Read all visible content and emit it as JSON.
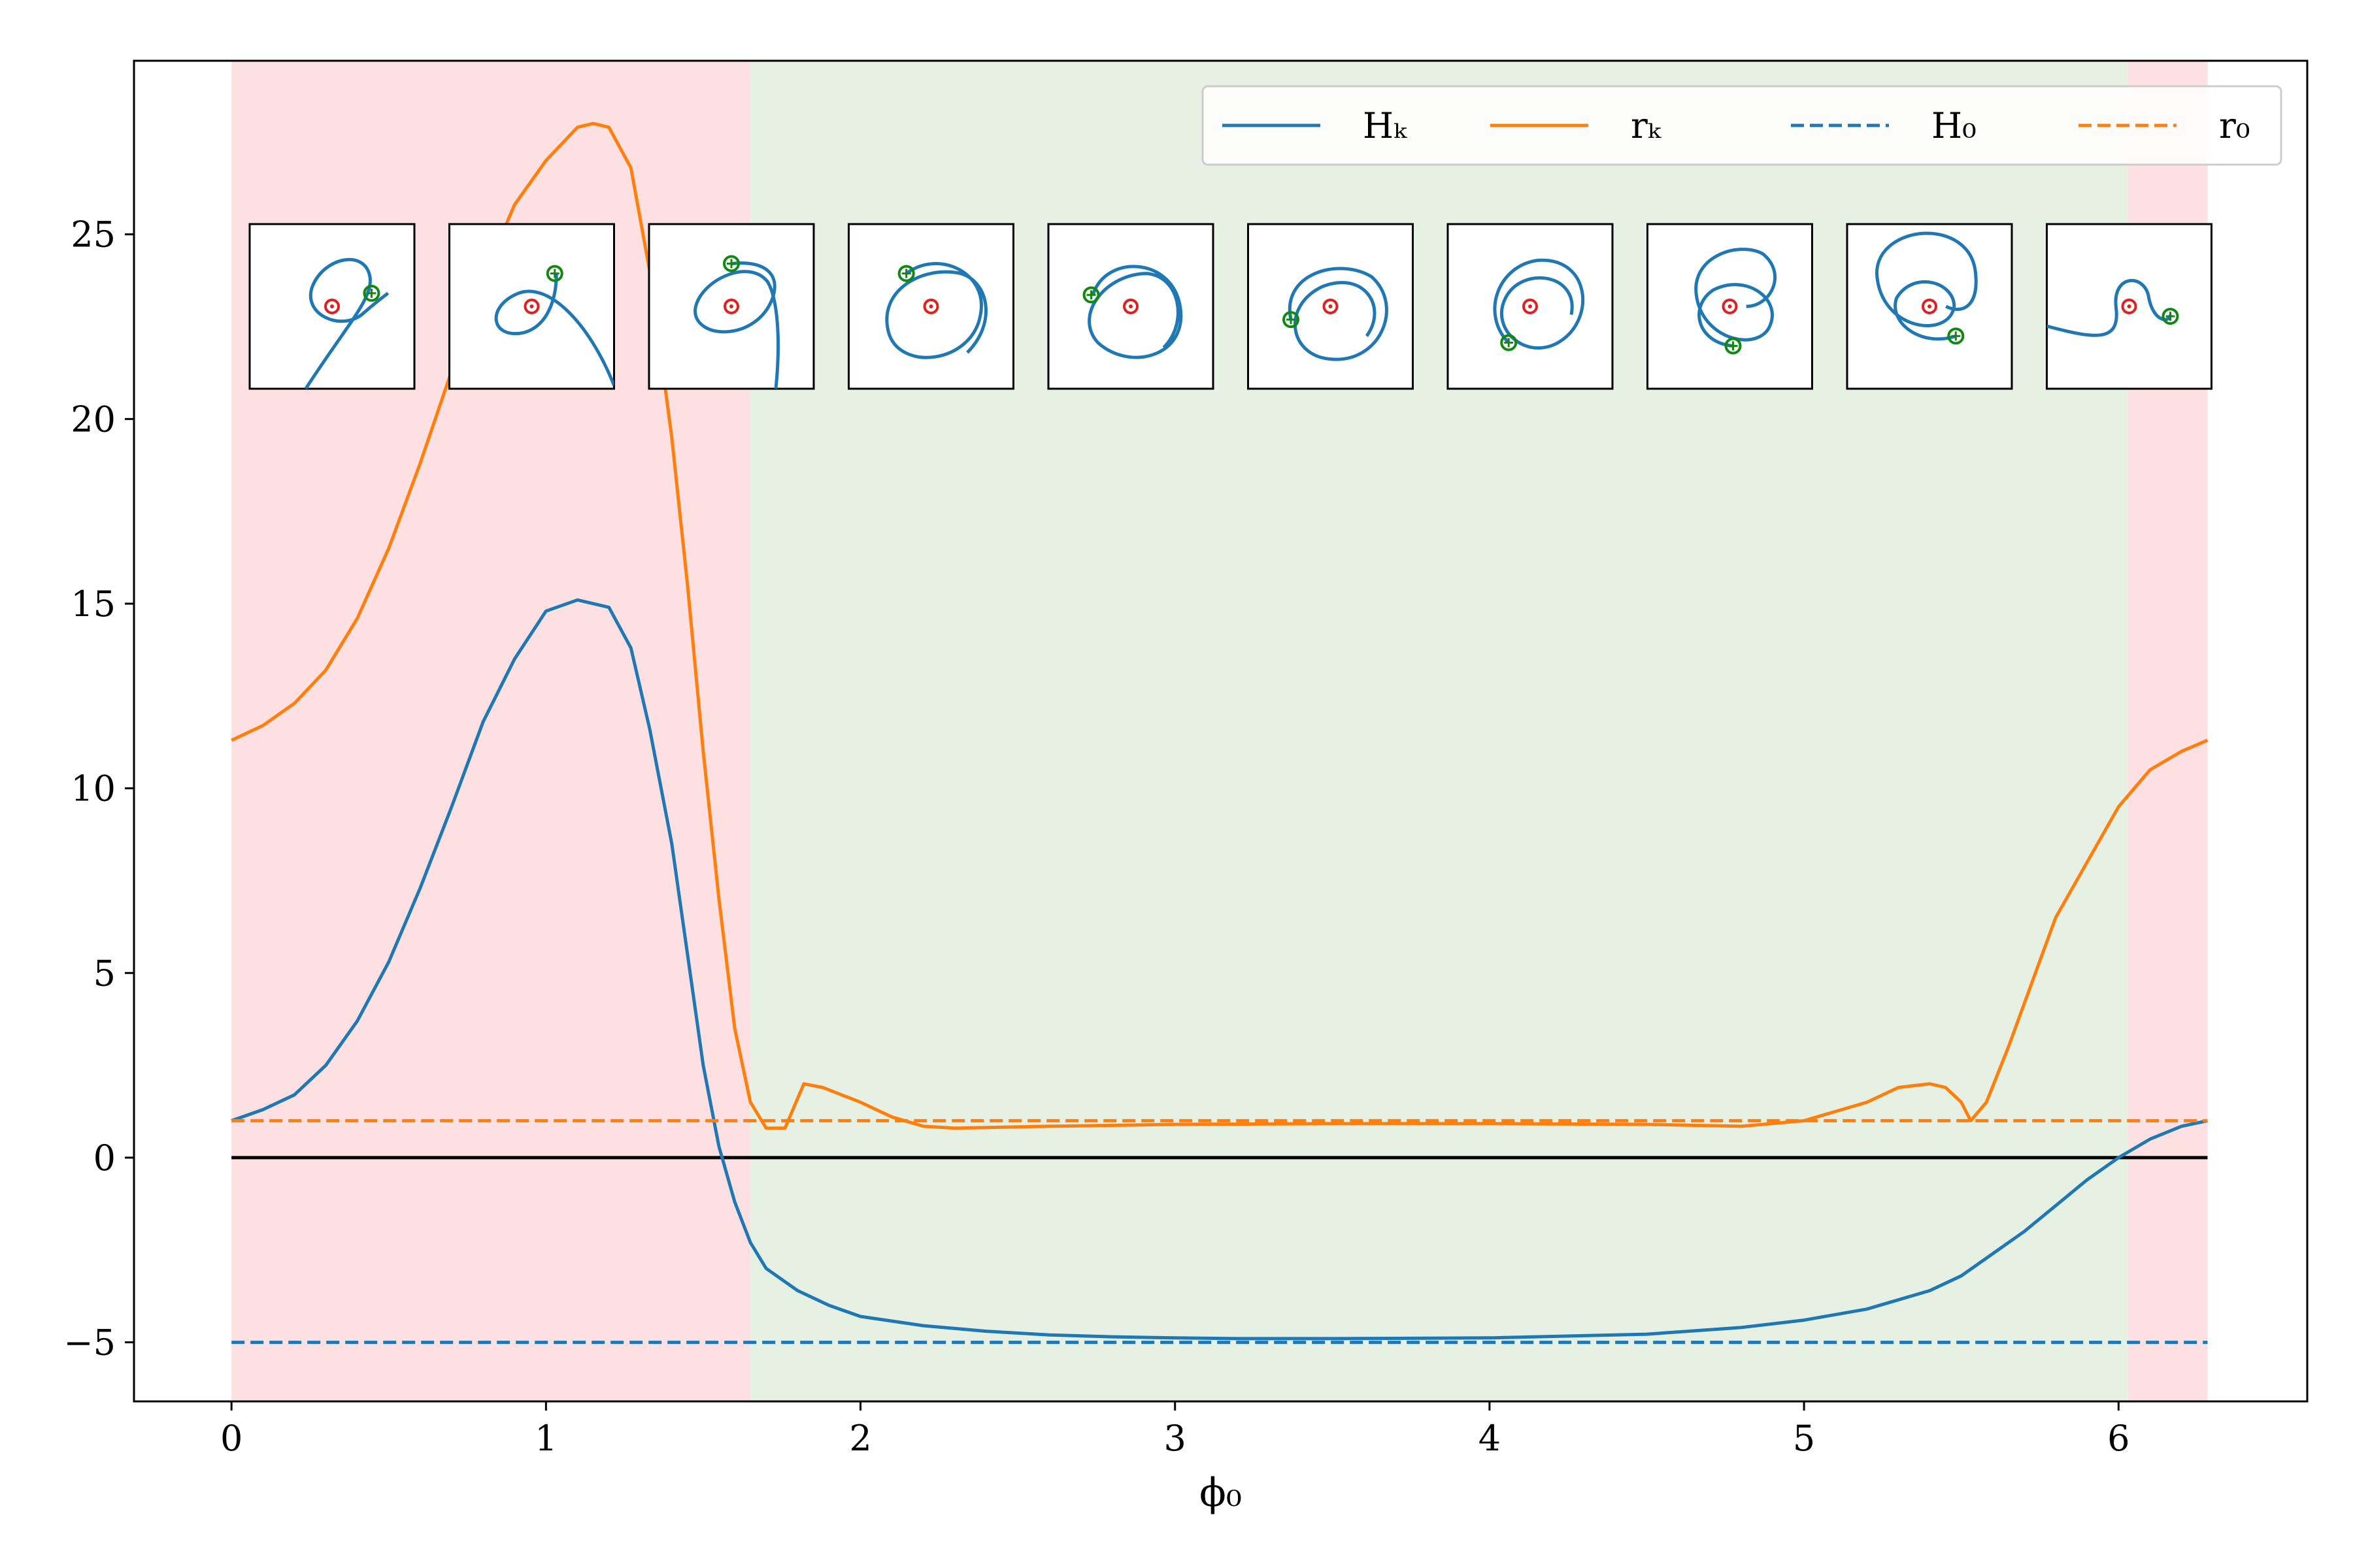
{
  "chart_data": {
    "type": "line",
    "xlabel": "ϕ₀",
    "ylabel": "",
    "xlim": [
      -0.31,
      6.6
    ],
    "ylim": [
      -6.6,
      29.7
    ],
    "xticks": [
      0,
      1,
      2,
      3,
      4,
      5,
      6
    ],
    "yticks": [
      -5,
      0,
      5,
      10,
      15,
      20,
      25
    ],
    "xtick_labels": [
      "0",
      "1",
      "2",
      "3",
      "4",
      "5",
      "6"
    ],
    "ytick_labels": [
      "−5",
      "0",
      "5",
      "10",
      "15",
      "20",
      "25"
    ],
    "grid": false,
    "legend_position": "top-right",
    "regions": [
      {
        "x_start": 0.0,
        "x_end": 1.65,
        "color": "#fde0e1"
      },
      {
        "x_start": 1.65,
        "x_end": 6.03,
        "color": "#e6f1e4"
      },
      {
        "x_start": 6.03,
        "x_end": 6.283,
        "color": "#fde0e1"
      }
    ],
    "hlines": [
      {
        "y": 0,
        "color": "#000000",
        "dash": "solid"
      }
    ],
    "series": [
      {
        "name": "Hₖ",
        "color": "#1f77b4",
        "dash": "solid",
        "x": [
          0,
          0.1,
          0.2,
          0.3,
          0.4,
          0.5,
          0.6,
          0.7,
          0.8,
          0.9,
          1.0,
          1.1,
          1.2,
          1.27,
          1.33,
          1.4,
          1.45,
          1.5,
          1.55,
          1.6,
          1.65,
          1.7,
          1.8,
          1.9,
          2.0,
          2.2,
          2.4,
          2.6,
          2.8,
          3.0,
          3.2,
          3.5,
          4.0,
          4.5,
          4.8,
          5.0,
          5.2,
          5.4,
          5.5,
          5.6,
          5.7,
          5.8,
          5.9,
          6.0,
          6.1,
          6.2,
          6.283
        ],
        "y": [
          1.0,
          1.3,
          1.7,
          2.5,
          3.7,
          5.3,
          7.3,
          9.5,
          11.8,
          13.5,
          14.8,
          15.1,
          14.9,
          13.8,
          11.6,
          8.5,
          5.5,
          2.5,
          0.3,
          -1.2,
          -2.3,
          -3.0,
          -3.6,
          -4.0,
          -4.3,
          -4.55,
          -4.7,
          -4.8,
          -4.85,
          -4.88,
          -4.9,
          -4.9,
          -4.88,
          -4.78,
          -4.6,
          -4.4,
          -4.1,
          -3.6,
          -3.2,
          -2.6,
          -2.0,
          -1.3,
          -0.6,
          0.0,
          0.5,
          0.85,
          1.0
        ]
      },
      {
        "name": "rₖ",
        "color": "#ff7f0e",
        "dash": "solid",
        "x": [
          0,
          0.1,
          0.2,
          0.3,
          0.4,
          0.5,
          0.6,
          0.7,
          0.8,
          0.9,
          1.0,
          1.1,
          1.15,
          1.2,
          1.27,
          1.33,
          1.4,
          1.45,
          1.5,
          1.55,
          1.6,
          1.65,
          1.7,
          1.76,
          1.82,
          1.88,
          2.0,
          2.1,
          2.2,
          2.3,
          2.6,
          3.0,
          3.5,
          4.0,
          4.5,
          4.8,
          5.0,
          5.2,
          5.3,
          5.4,
          5.45,
          5.5,
          5.53,
          5.58,
          5.65,
          5.8,
          6.0,
          6.1,
          6.2,
          6.283
        ],
        "y": [
          11.3,
          11.7,
          12.3,
          13.2,
          14.6,
          16.5,
          18.8,
          21.3,
          23.8,
          25.8,
          27.0,
          27.9,
          28.0,
          27.9,
          26.8,
          24.0,
          19.5,
          15.5,
          11.0,
          7.0,
          3.5,
          1.5,
          0.8,
          0.8,
          2.0,
          1.9,
          1.5,
          1.1,
          0.85,
          0.8,
          0.85,
          0.9,
          0.92,
          0.92,
          0.9,
          0.85,
          1.0,
          1.5,
          1.9,
          2.0,
          1.9,
          1.5,
          1.0,
          1.5,
          3.0,
          6.5,
          9.5,
          10.5,
          11.0,
          11.3
        ]
      },
      {
        "name": "H₀",
        "color": "#1f77b4",
        "dash": "dashed",
        "x": [
          0,
          6.283
        ],
        "y": [
          -5,
          -5
        ]
      },
      {
        "name": "r₀",
        "color": "#ff7f0e",
        "dash": "dashed",
        "x": [
          0,
          6.283
        ],
        "y": [
          1,
          1
        ]
      }
    ],
    "insets": {
      "count": 10,
      "center_marker_color": "#e02020",
      "end_marker_color": "#118811",
      "curve_color": "#1f77b4"
    }
  }
}
